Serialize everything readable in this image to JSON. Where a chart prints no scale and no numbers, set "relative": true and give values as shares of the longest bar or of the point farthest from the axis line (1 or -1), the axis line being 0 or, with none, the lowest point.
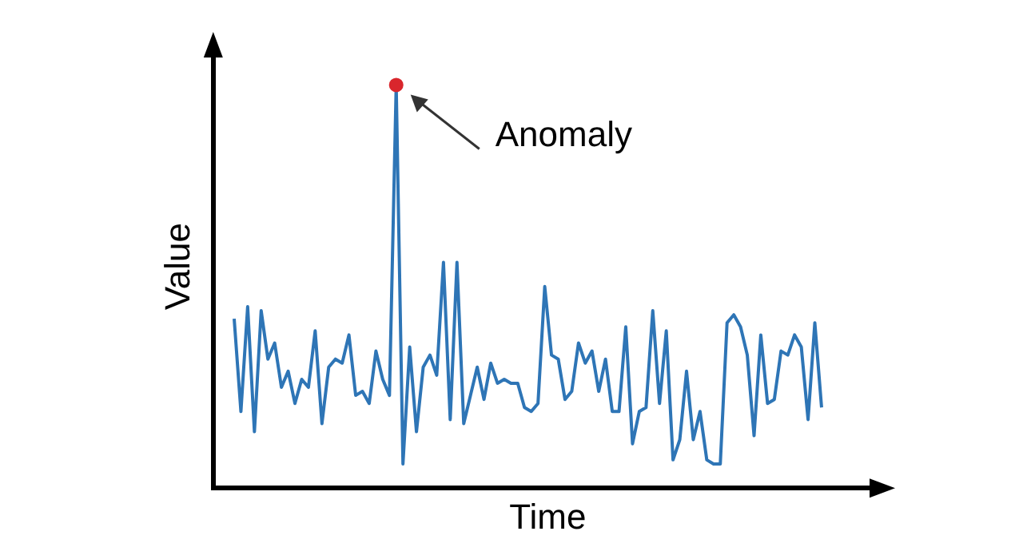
{
  "chart_data": {
    "type": "line",
    "xlabel": "Time",
    "ylabel": "Value",
    "relative": true,
    "legend": false,
    "categories": [
      null,
      null,
      null,
      null,
      null,
      null,
      null,
      null,
      null,
      null,
      null,
      null,
      null,
      null,
      null,
      null,
      null,
      null,
      null,
      null,
      null,
      null,
      null,
      null,
      null,
      null,
      null,
      null,
      null,
      null,
      null,
      null,
      null,
      null,
      null,
      null,
      null,
      null,
      null,
      null,
      null,
      null,
      null,
      null,
      null,
      null,
      null,
      null,
      null,
      null,
      null,
      null,
      null,
      null,
      null,
      null,
      null,
      null,
      null,
      null,
      null,
      null,
      null,
      null,
      null,
      null,
      null,
      null,
      null,
      null,
      null,
      null,
      null,
      null,
      null,
      null,
      null,
      null,
      null,
      null,
      null,
      null,
      null,
      null,
      null,
      null,
      null,
      null
    ],
    "series": [
      {
        "color": "#2e75b6",
        "values": [
          0.42,
          0.19,
          0.45,
          0.14,
          0.44,
          0.32,
          0.36,
          0.25,
          0.29,
          0.21,
          0.27,
          0.25,
          0.39,
          0.16,
          0.3,
          0.32,
          0.31,
          0.38,
          0.23,
          0.24,
          0.21,
          0.34,
          0.27,
          0.23,
          1,
          0.06,
          0.35,
          0.14,
          0.3,
          0.33,
          0.28,
          0.56,
          0.17,
          0.56,
          0.16,
          0.23,
          0.3,
          0.22,
          0.31,
          0.26,
          0.27,
          0.26,
          0.26,
          0.2,
          0.19,
          0.21,
          0.5,
          0.33,
          0.32,
          0.22,
          0.24,
          0.36,
          0.31,
          0.34,
          0.24,
          0.32,
          0.19,
          0.19,
          0.4,
          0.11,
          0.19,
          0.2,
          0.44,
          0.21,
          0.39,
          0.07,
          0.12,
          0.29,
          0.12,
          0.19,
          0.07,
          0.06,
          0.06,
          0.41,
          0.43,
          0.4,
          0.33,
          0.13,
          0.38,
          0.21,
          0.22,
          0.34,
          0.33,
          0.38,
          0.35,
          0.17,
          0.41,
          0.2
        ]
      }
    ],
    "annotations": [
      "Anomaly"
    ]
  }
}
